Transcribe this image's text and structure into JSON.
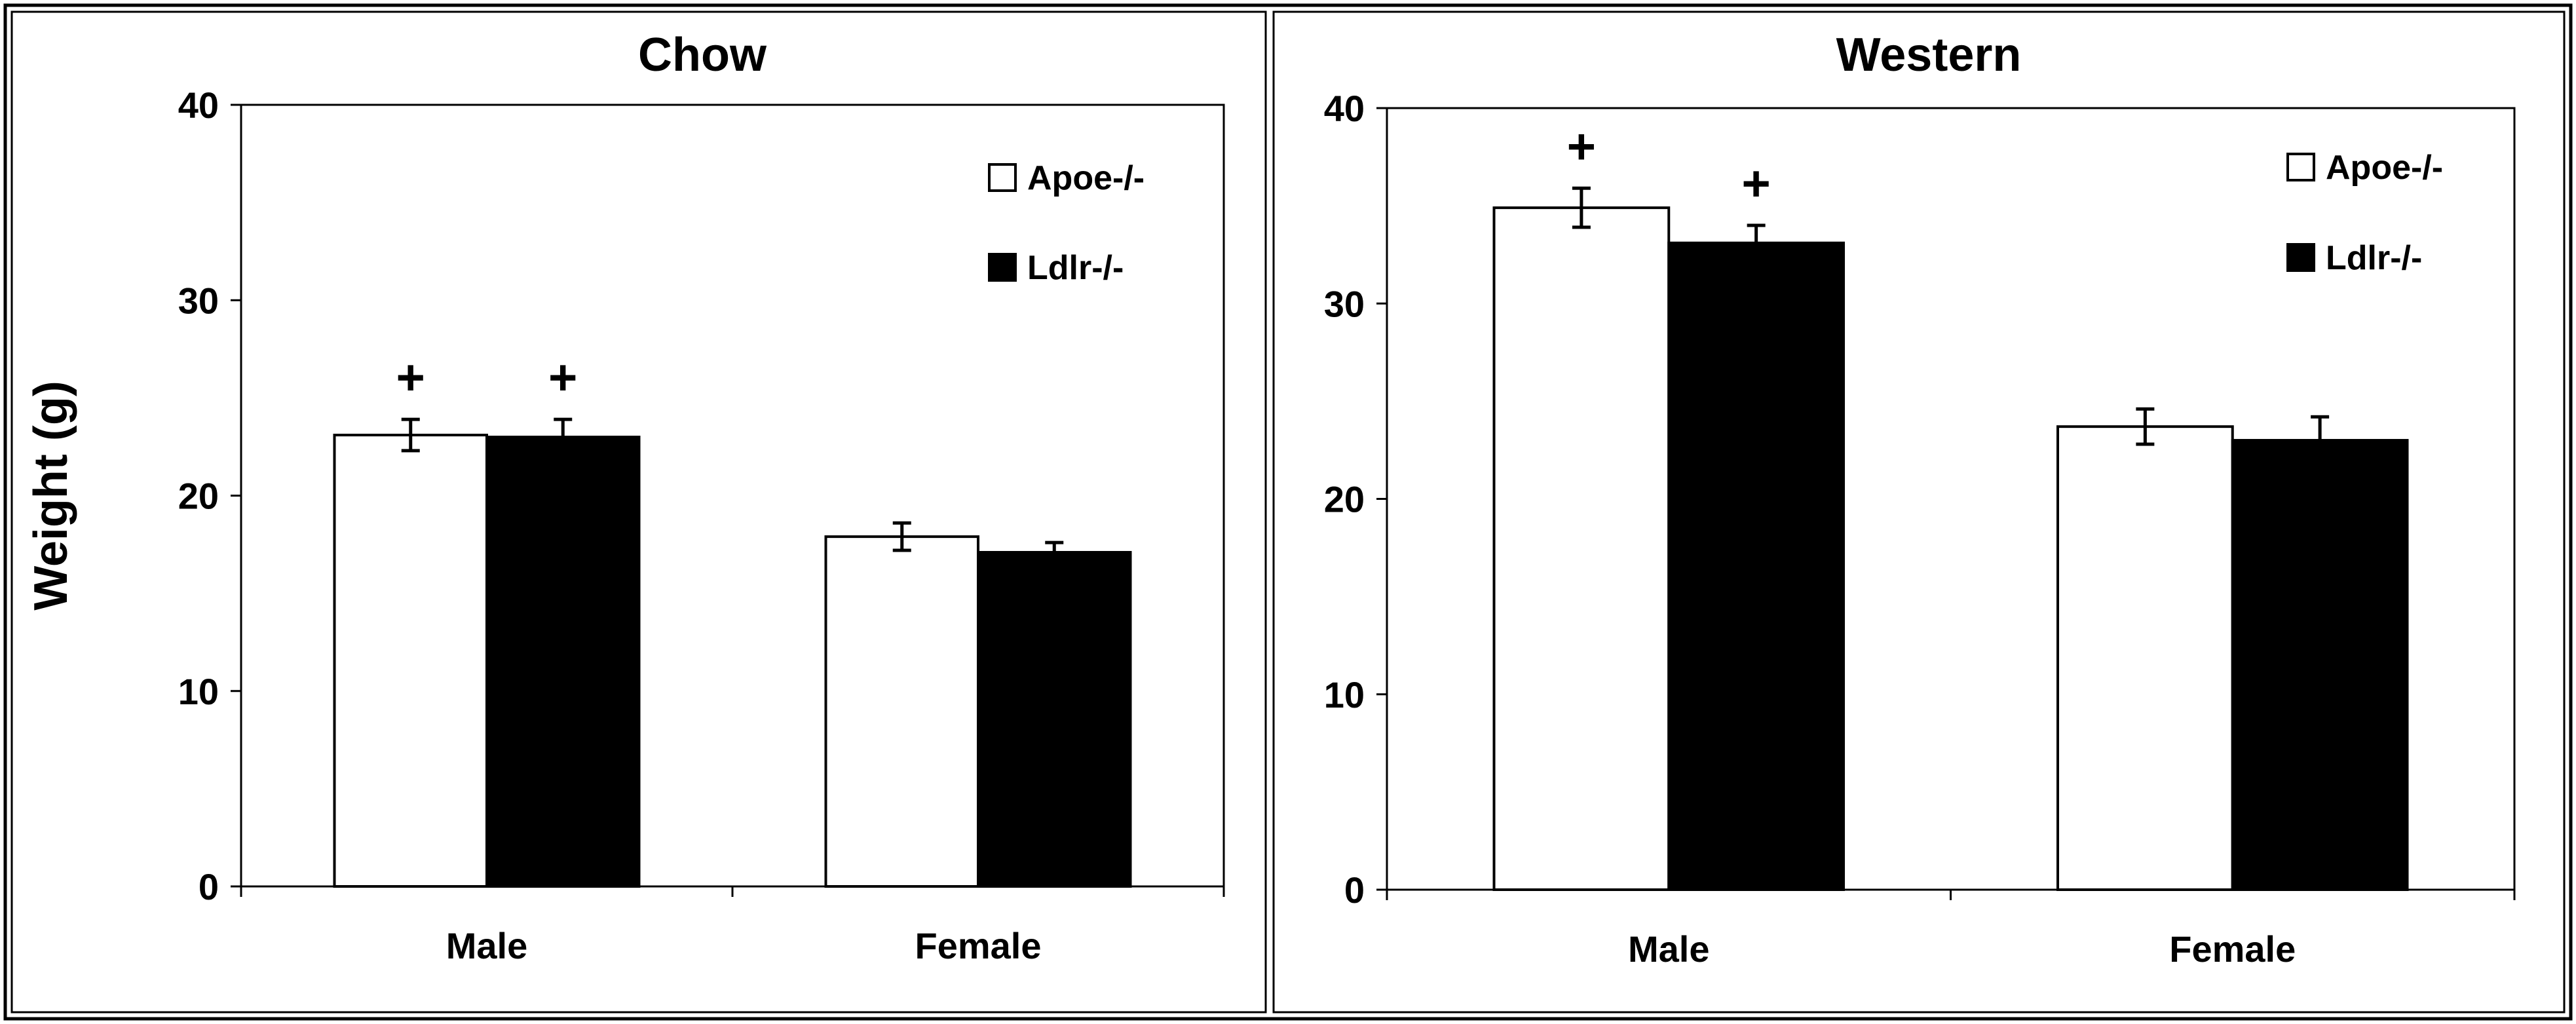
{
  "chart_data": [
    {
      "type": "bar",
      "title": "Chow",
      "ylabel": "Weight (g)",
      "xlabel": "",
      "ylim": [
        0,
        40
      ],
      "yticks": [
        0,
        10,
        20,
        30,
        40
      ],
      "categories": [
        "Male",
        "Female"
      ],
      "series": [
        {
          "name": "Apoe-/-",
          "color": "#ffffff",
          "values": [
            23.1,
            17.9
          ],
          "errors": [
            0.8,
            0.7
          ]
        },
        {
          "name": "Ldlr-/-",
          "color": "#000000",
          "values": [
            23.0,
            17.1
          ],
          "errors": [
            0.9,
            0.5
          ]
        }
      ],
      "annotations": [
        {
          "category": "Male",
          "series": "Apoe-/-",
          "text": "+"
        },
        {
          "category": "Male",
          "series": "Ldlr-/-",
          "text": "+"
        }
      ],
      "legend": "top-right"
    },
    {
      "type": "bar",
      "title": "Western",
      "ylabel": "",
      "xlabel": "",
      "ylim": [
        0,
        40
      ],
      "yticks": [
        0,
        10,
        20,
        30,
        40
      ],
      "categories": [
        "Male",
        "Female"
      ],
      "series": [
        {
          "name": "Apoe-/-",
          "color": "#ffffff",
          "values": [
            34.9,
            23.7
          ],
          "errors": [
            1.0,
            0.9
          ]
        },
        {
          "name": "Ldlr-/-",
          "color": "#000000",
          "values": [
            33.1,
            23.0
          ],
          "errors": [
            0.9,
            1.2
          ]
        }
      ],
      "annotations": [
        {
          "category": "Male",
          "series": "Apoe-/-",
          "text": "+"
        },
        {
          "category": "Male",
          "series": "Ldlr-/-",
          "text": "+"
        }
      ],
      "legend": "top-right"
    }
  ]
}
